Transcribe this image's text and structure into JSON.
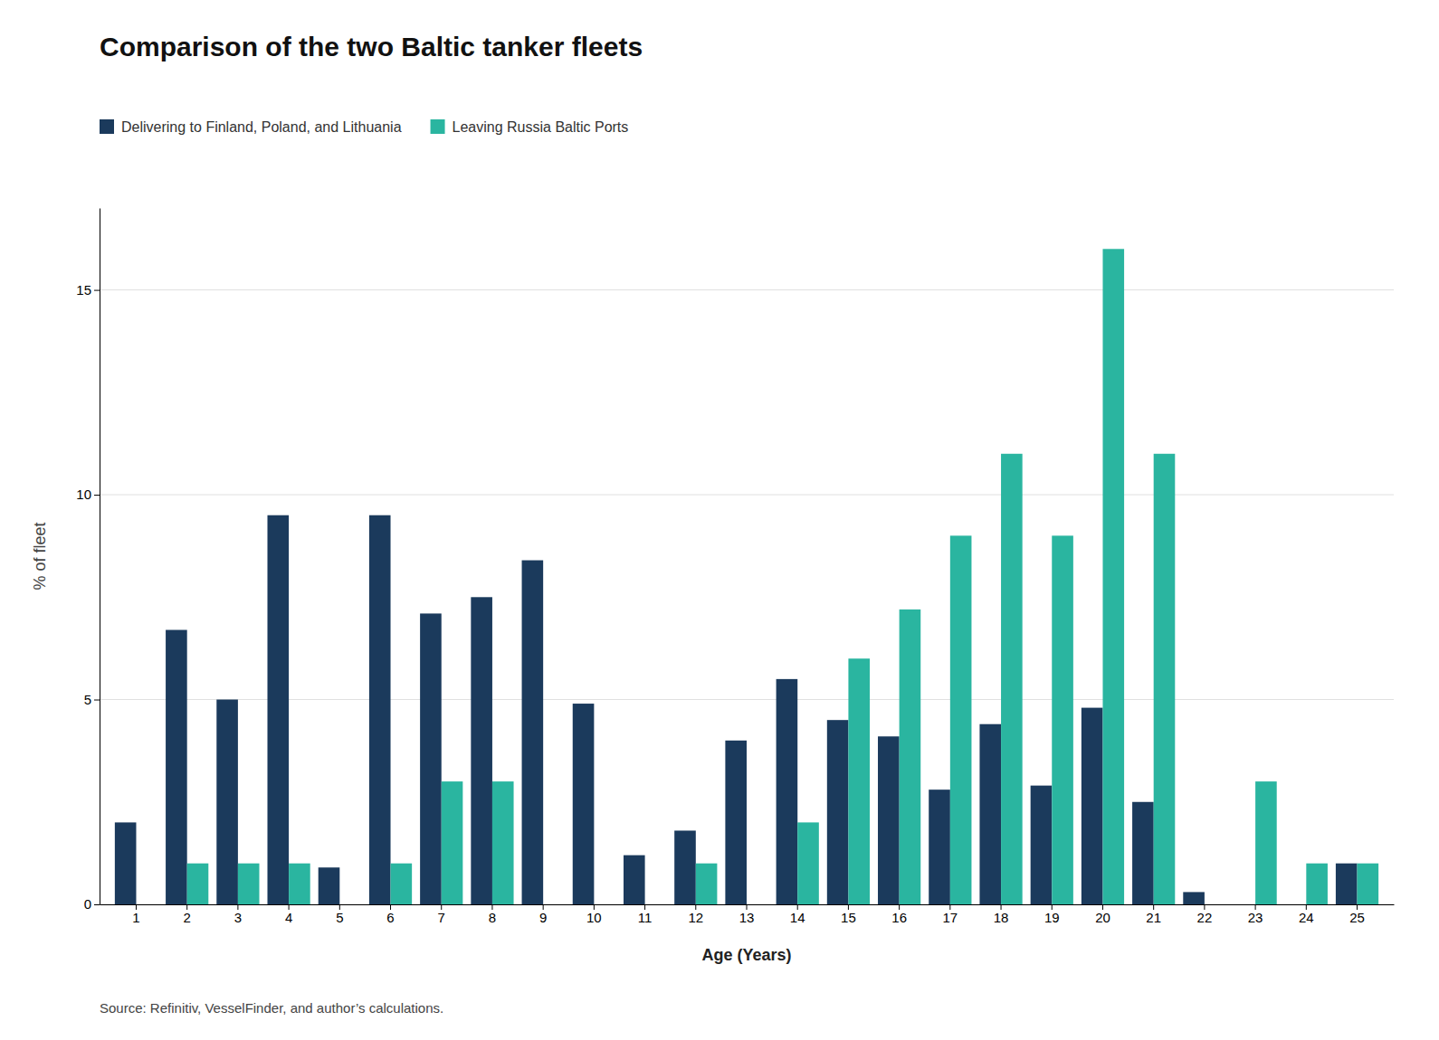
{
  "chart_data": {
    "type": "bar",
    "title": "Comparison of the two Baltic tanker fleets",
    "xlabel": "Age (Years)",
    "ylabel": "% of fleet",
    "source": "Source: Refinitiv, VesselFinder, and author’s calculations.",
    "categories": [
      "1",
      "2",
      "3",
      "4",
      "5",
      "6",
      "7",
      "8",
      "9",
      "10",
      "11",
      "12",
      "13",
      "14",
      "15",
      "16",
      "17",
      "18",
      "19",
      "20",
      "21",
      "22",
      "23",
      "24",
      "25"
    ],
    "series": [
      {
        "name": "Delivering to Finland, Poland, and Lithuania",
        "color": "#1b3a5c",
        "values": [
          2.0,
          6.7,
          5.0,
          9.5,
          0.9,
          9.5,
          7.1,
          7.5,
          8.4,
          4.9,
          1.2,
          1.8,
          4.0,
          5.5,
          4.5,
          4.1,
          2.8,
          4.4,
          2.9,
          4.8,
          2.5,
          0.3,
          0.0,
          0.0,
          1.0
        ]
      },
      {
        "name": "Leaving Russia Baltic Ports",
        "color": "#2ab5a0",
        "values": [
          0.0,
          1.0,
          1.0,
          1.0,
          0.0,
          1.0,
          3.0,
          3.0,
          0.0,
          0.0,
          0.0,
          1.0,
          0.0,
          2.0,
          6.0,
          7.2,
          9.0,
          11.0,
          9.0,
          16.0,
          11.0,
          0.0,
          3.0,
          1.0,
          1.0
        ]
      }
    ],
    "ylim": [
      0,
      17
    ],
    "yticks": [
      0,
      5,
      10,
      15
    ],
    "grid": true,
    "legend": "top"
  }
}
